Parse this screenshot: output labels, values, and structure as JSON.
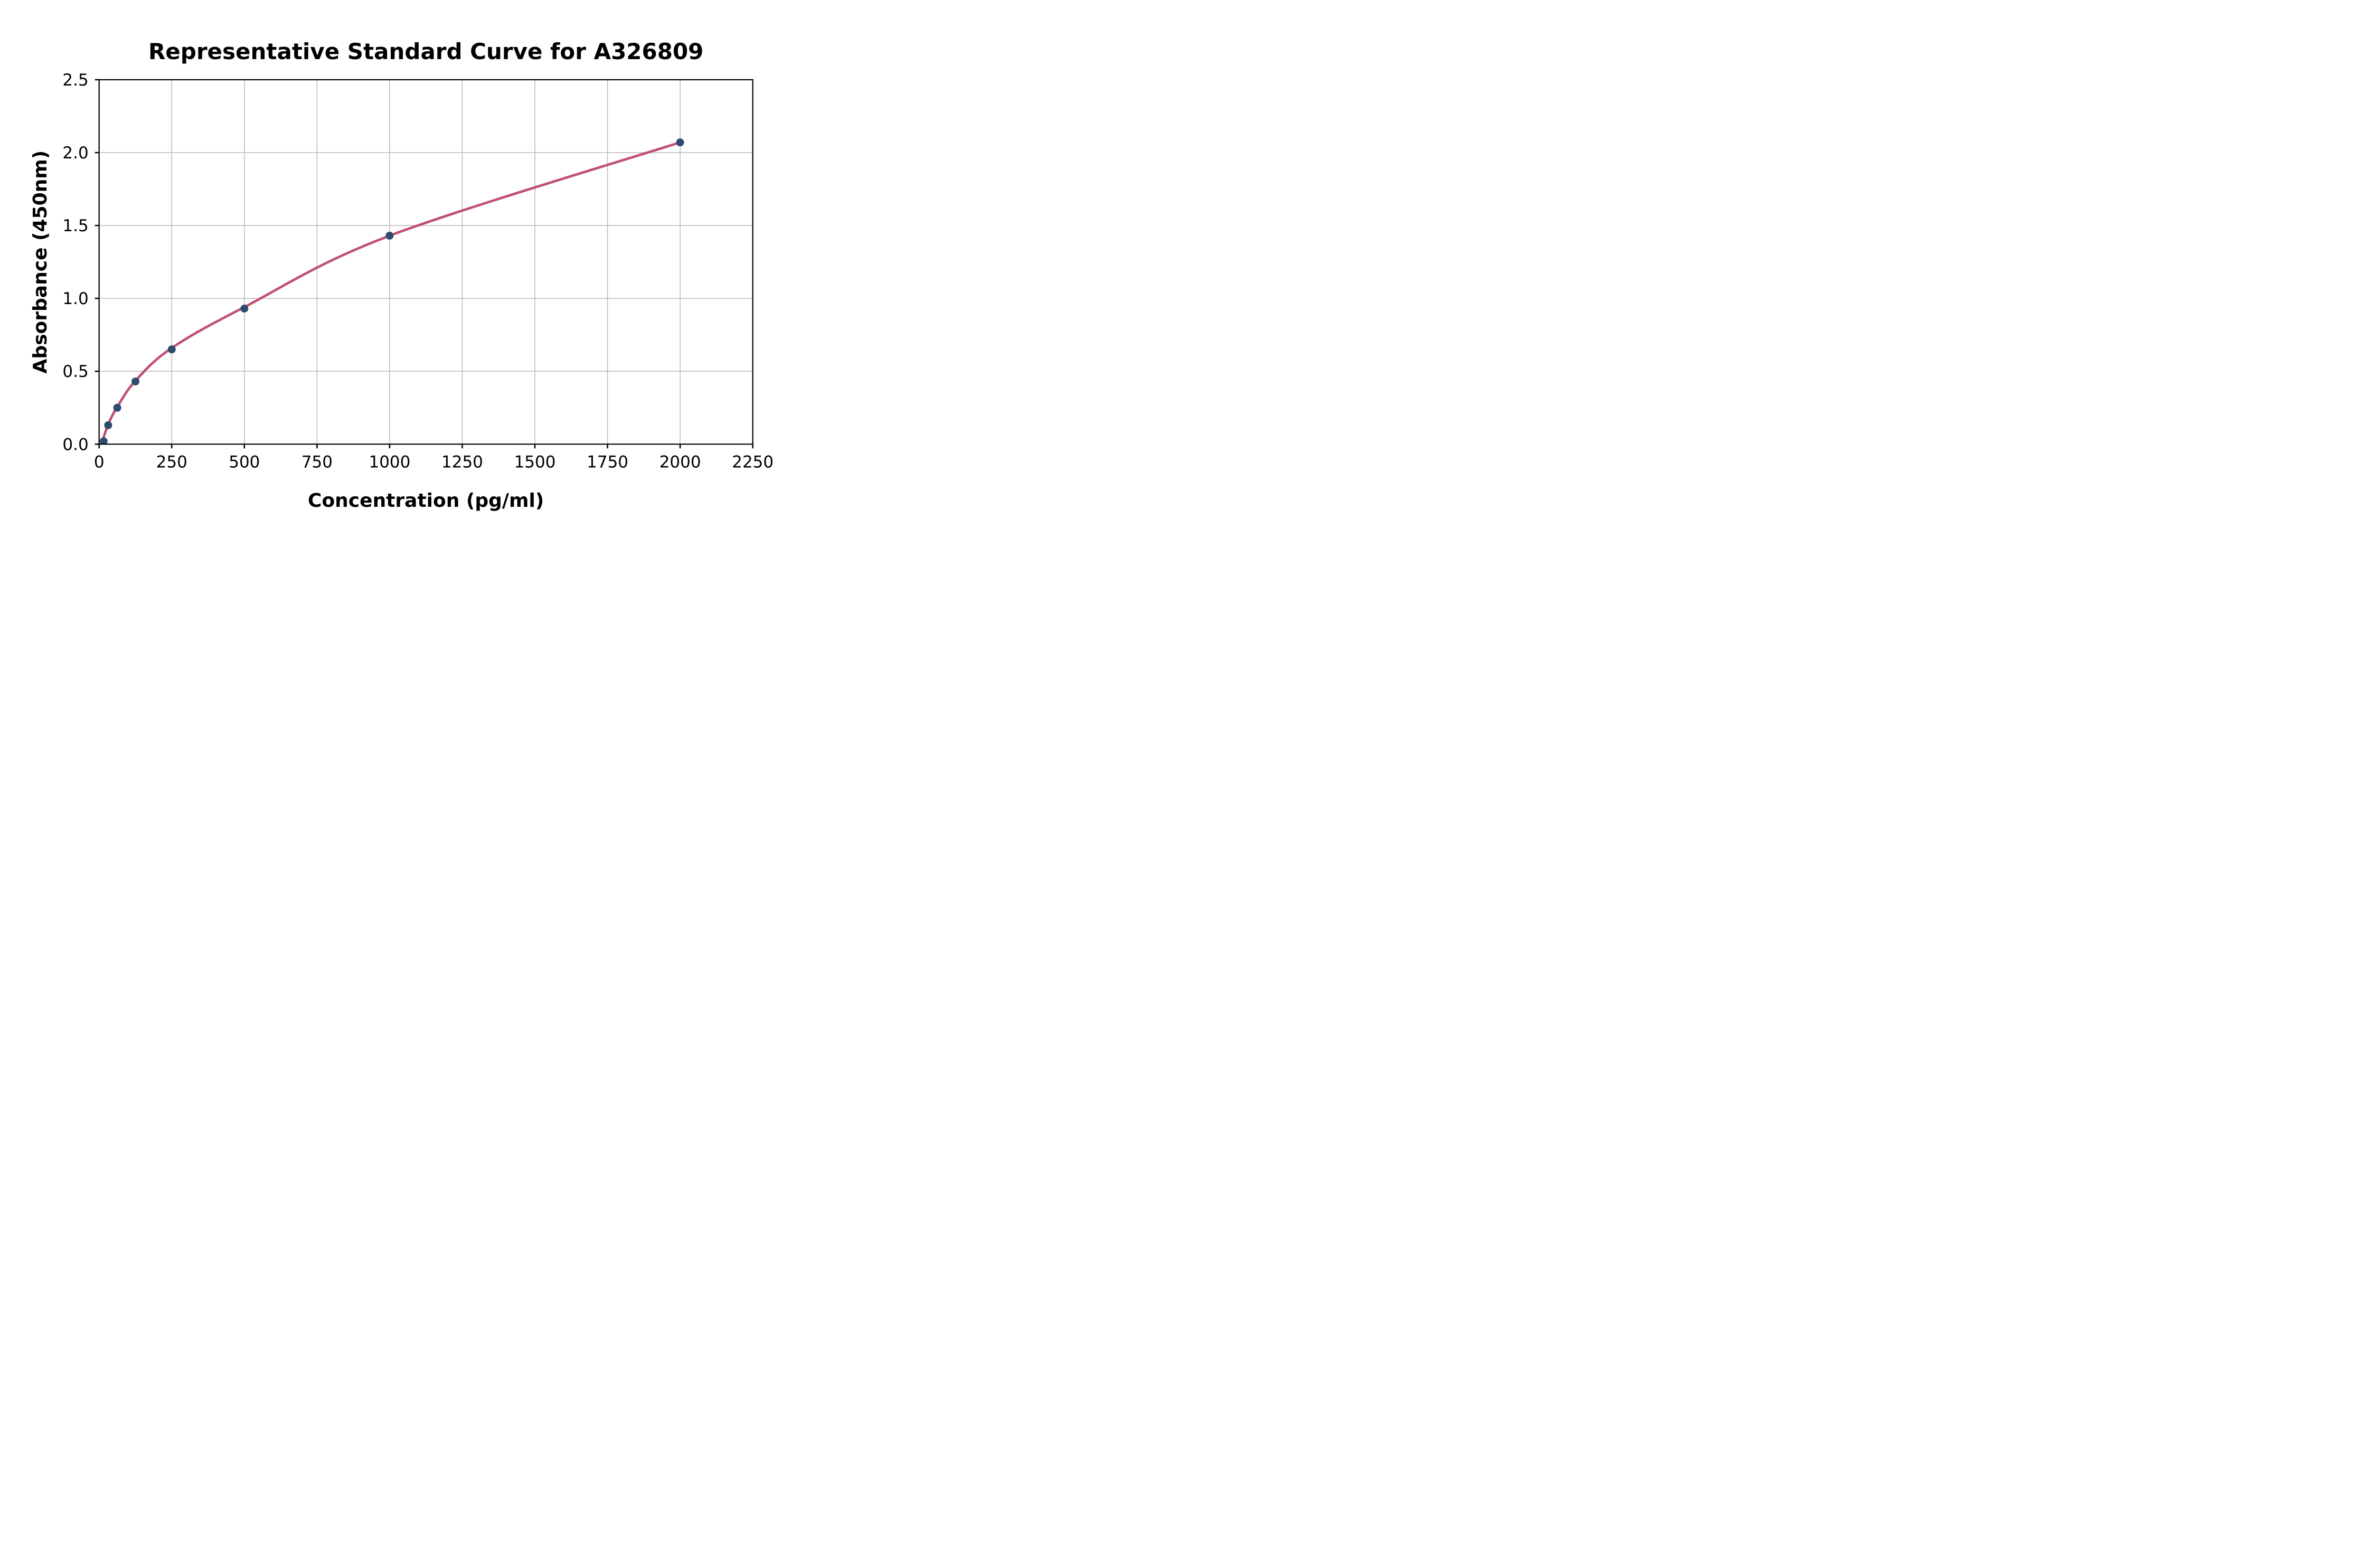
{
  "chart_data": {
    "type": "scatter",
    "title": "Representative Standard Curve for A326809",
    "xlabel": "Concentration (pg/ml)",
    "ylabel": "Absorbance (450nm)",
    "xlim": [
      0,
      2250
    ],
    "ylim": [
      0.0,
      2.5
    ],
    "x_ticks": [
      0,
      250,
      500,
      750,
      1000,
      1250,
      1500,
      1750,
      2000,
      2250
    ],
    "y_ticks": [
      0.0,
      0.5,
      1.0,
      1.5,
      2.0,
      2.5
    ],
    "grid": true,
    "legend_position": "none",
    "series": [
      {
        "name": "standard-points",
        "type": "scatter",
        "color": "#2e4d6e",
        "points": [
          [
            15.6,
            0.02
          ],
          [
            31.2,
            0.13
          ],
          [
            62.5,
            0.25
          ],
          [
            125,
            0.43
          ],
          [
            250,
            0.65
          ],
          [
            500,
            0.93
          ],
          [
            1000,
            1.43
          ],
          [
            2000,
            2.07
          ]
        ]
      },
      {
        "name": "fitted-curve",
        "type": "line",
        "color": "#c14f76",
        "points": [
          [
            8,
            0.0
          ],
          [
            31.2,
            0.135
          ],
          [
            62.5,
            0.255
          ],
          [
            125,
            0.435
          ],
          [
            250,
            0.66
          ],
          [
            500,
            0.94
          ],
          [
            1000,
            1.43
          ],
          [
            2000,
            2.07
          ]
        ]
      }
    ],
    "colors": {
      "grid": "#b9b9b9",
      "axis": "#000000",
      "text": "#000000",
      "background": "#ffffff"
    }
  }
}
